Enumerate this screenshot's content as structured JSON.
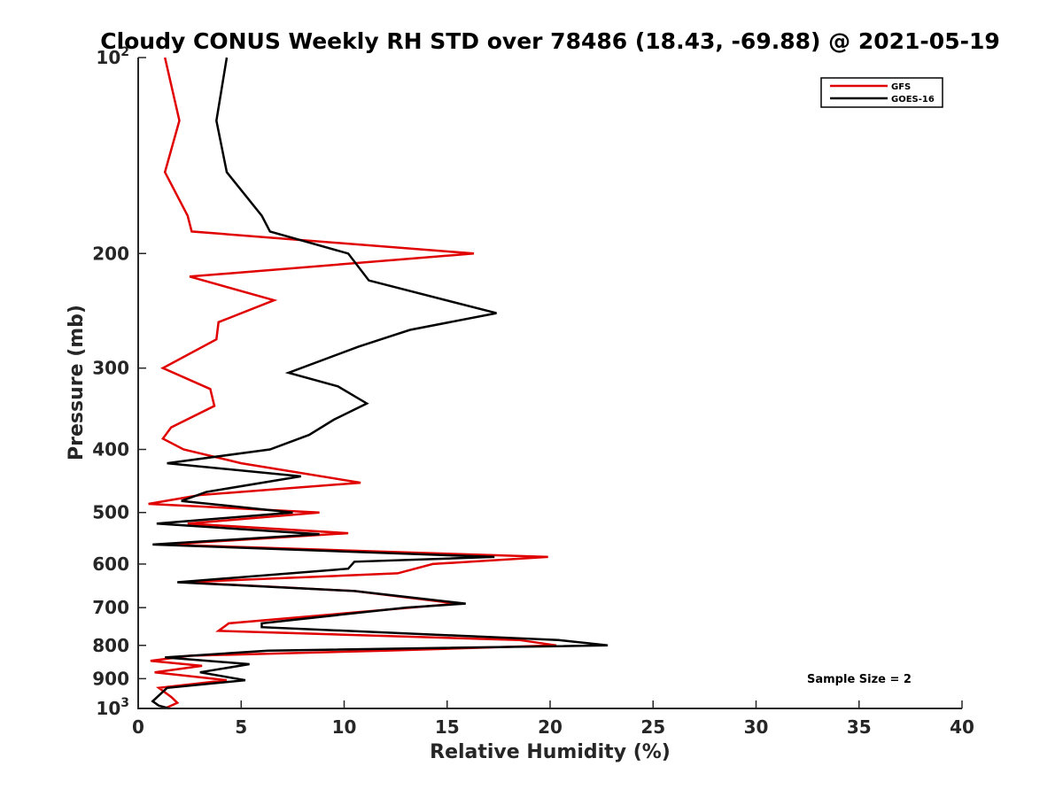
{
  "chart_data": {
    "type": "line",
    "title": "Cloudy CONUS Weekly RH STD over 78486 (18.43, -69.88) @ 2021-05-19",
    "xlabel": "Relative Humidity (%)",
    "ylabel": "Pressure (mb)",
    "xlim": [
      0,
      40
    ],
    "ylim": [
      100,
      1000
    ],
    "y_scale": "log",
    "y_reversed": true,
    "x_ticks": [
      0,
      5,
      10,
      15,
      20,
      25,
      30,
      35,
      40
    ],
    "y_ticks": [
      {
        "value": 100,
        "label": "10",
        "sup": "2"
      },
      {
        "value": 200,
        "label": "200",
        "sup": ""
      },
      {
        "value": 300,
        "label": "300",
        "sup": ""
      },
      {
        "value": 400,
        "label": "400",
        "sup": ""
      },
      {
        "value": 500,
        "label": "500",
        "sup": ""
      },
      {
        "value": 600,
        "label": "600",
        "sup": ""
      },
      {
        "value": 700,
        "label": "700",
        "sup": ""
      },
      {
        "value": 800,
        "label": "800",
        "sup": ""
      },
      {
        "value": 900,
        "label": "900",
        "sup": ""
      },
      {
        "value": 1000,
        "label": "10",
        "sup": "3"
      }
    ],
    "grid": false,
    "legend_position": "top-right",
    "annotation": "Sample Size = 2",
    "series": [
      {
        "name": "GFS",
        "color": "#e00000",
        "points": [
          [
            1.3,
            100
          ],
          [
            2.0,
            125
          ],
          [
            1.3,
            150
          ],
          [
            2.4,
            175
          ],
          [
            2.6,
            185
          ],
          [
            16.3,
            200
          ],
          [
            2.5,
            217
          ],
          [
            6.6,
            236
          ],
          [
            3.9,
            255
          ],
          [
            3.8,
            271
          ],
          [
            1.2,
            300
          ],
          [
            3.5,
            323
          ],
          [
            3.7,
            343
          ],
          [
            1.6,
            370
          ],
          [
            1.2,
            385
          ],
          [
            2.2,
            400
          ],
          [
            5.0,
            420
          ],
          [
            10.8,
            450
          ],
          [
            3.0,
            470
          ],
          [
            0.5,
            485
          ],
          [
            8.8,
            500
          ],
          [
            2.4,
            520
          ],
          [
            10.2,
            538
          ],
          [
            1.3,
            560
          ],
          [
            19.9,
            585
          ],
          [
            14.3,
            600
          ],
          [
            12.6,
            620
          ],
          [
            2.2,
            640
          ],
          [
            10.5,
            660
          ],
          [
            15.5,
            690
          ],
          [
            4.4,
            740
          ],
          [
            3.9,
            760
          ],
          [
            18.5,
            785
          ],
          [
            20.3,
            800
          ],
          [
            12.0,
            815
          ],
          [
            2.5,
            830
          ],
          [
            0.6,
            845
          ],
          [
            3.1,
            860
          ],
          [
            0.8,
            880
          ],
          [
            4.3,
            905
          ],
          [
            1.0,
            930
          ],
          [
            1.6,
            960
          ],
          [
            1.9,
            980
          ],
          [
            1.3,
            1000
          ]
        ]
      },
      {
        "name": "GOES-16",
        "color": "#000000",
        "points": [
          [
            4.3,
            100
          ],
          [
            3.8,
            125
          ],
          [
            4.3,
            150
          ],
          [
            6.0,
            175
          ],
          [
            6.4,
            185
          ],
          [
            10.2,
            200
          ],
          [
            11.2,
            220
          ],
          [
            17.4,
            247
          ],
          [
            13.2,
            262
          ],
          [
            10.7,
            278
          ],
          [
            7.3,
            305
          ],
          [
            9.7,
            320
          ],
          [
            11.1,
            340
          ],
          [
            9.5,
            360
          ],
          [
            8.3,
            380
          ],
          [
            6.4,
            400
          ],
          [
            1.4,
            420
          ],
          [
            7.9,
            440
          ],
          [
            3.3,
            465
          ],
          [
            2.1,
            480
          ],
          [
            7.5,
            500
          ],
          [
            0.9,
            520
          ],
          [
            8.8,
            540
          ],
          [
            0.7,
            560
          ],
          [
            17.3,
            585
          ],
          [
            10.5,
            595
          ],
          [
            10.2,
            610
          ],
          [
            1.9,
            640
          ],
          [
            10.5,
            660
          ],
          [
            15.9,
            690
          ],
          [
            13.0,
            700
          ],
          [
            6.0,
            740
          ],
          [
            6.0,
            750
          ],
          [
            20.4,
            785
          ],
          [
            22.8,
            800
          ],
          [
            6.3,
            815
          ],
          [
            1.3,
            835
          ],
          [
            5.4,
            855
          ],
          [
            3.0,
            880
          ],
          [
            5.2,
            905
          ],
          [
            1.4,
            930
          ],
          [
            0.7,
            975
          ],
          [
            1.0,
            990
          ],
          [
            1.5,
            1000
          ]
        ]
      }
    ]
  }
}
